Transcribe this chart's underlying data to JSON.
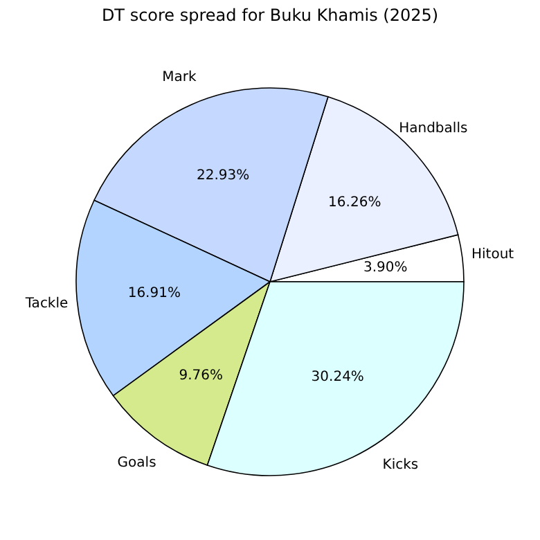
{
  "chart_data": {
    "type": "pie",
    "title": "DT score spread for Buku Khamis (2025)",
    "categories": [
      "Hitout",
      "Handballs",
      "Mark",
      "Tackle",
      "Goals",
      "Kicks"
    ],
    "values": [
      3.9,
      16.26,
      22.93,
      16.91,
      9.76,
      30.24
    ],
    "value_labels": [
      "3.90%",
      "16.26%",
      "22.93%",
      "16.91%",
      "9.76%",
      "30.24%"
    ],
    "colors": [
      "#ffffff",
      "#eaf0ff",
      "#c5d8ff",
      "#b3d4ff",
      "#d4ea8c",
      "#dcffff"
    ],
    "legend": false
  }
}
